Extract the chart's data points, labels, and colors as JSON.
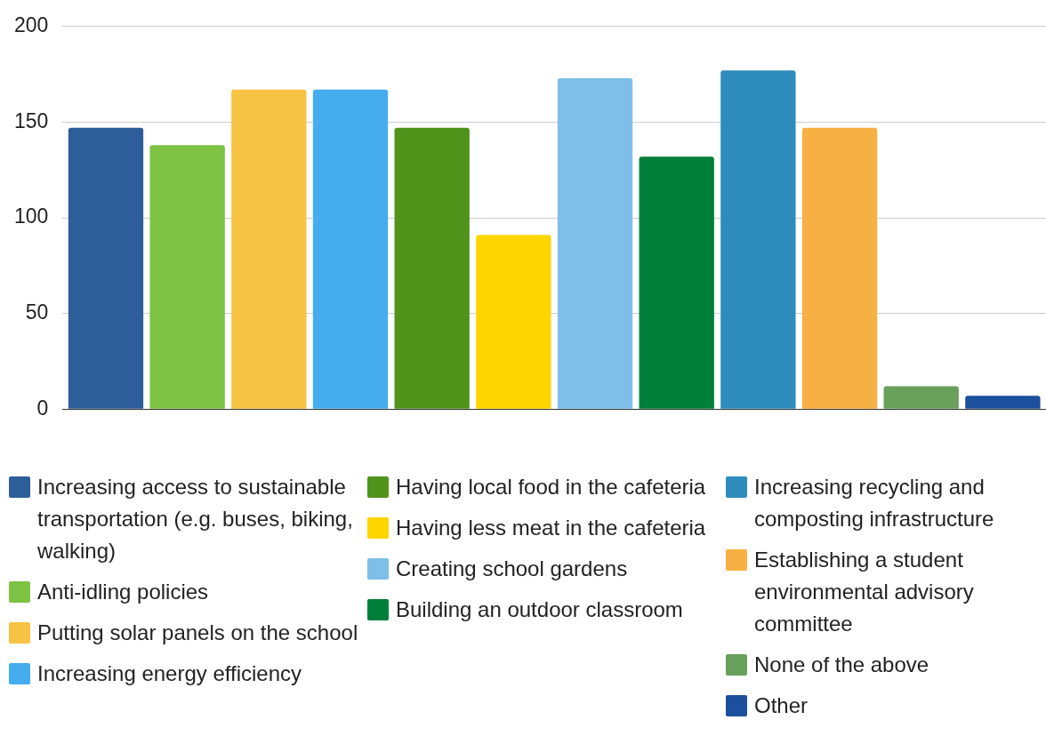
{
  "chart_data": {
    "type": "bar",
    "categories": [
      null
    ],
    "series": [
      {
        "name": "Increasing access to sustainable transportation (e.g. buses, biking, walking)",
        "color": "#2e5e99",
        "values": [
          147
        ]
      },
      {
        "name": "Anti-idling policies",
        "color": "#7dc242",
        "values": [
          138
        ]
      },
      {
        "name": "Putting solar panels on the school",
        "color": "#f6c344",
        "values": [
          167
        ]
      },
      {
        "name": "Increasing energy efficiency",
        "color": "#45aded",
        "values": [
          167
        ]
      },
      {
        "name": "Having local food in the cafeteria",
        "color": "#4f931b",
        "values": [
          147
        ]
      },
      {
        "name": "Having less meat in the cafeteria",
        "color": "#ffd600",
        "values": [
          91
        ]
      },
      {
        "name": "Creating school gardens",
        "color": "#7dbfe9",
        "values": [
          173
        ]
      },
      {
        "name": "Building an outdoor classroom",
        "color": "#007f3a",
        "values": [
          132
        ]
      },
      {
        "name": "Increasing recycling and composting infrastructure",
        "color": "#2e8cbc",
        "values": [
          177
        ]
      },
      {
        "name": "Establishing a student environmental advisory committee",
        "color": "#f6b043",
        "values": [
          147
        ]
      },
      {
        "name": "None of the above",
        "color": "#68a05c",
        "values": [
          12
        ]
      },
      {
        "name": "Other",
        "color": "#1c4f9c",
        "values": [
          7
        ]
      }
    ],
    "ylim": [
      0,
      200
    ],
    "yticks": [
      0,
      50,
      100,
      150,
      200
    ],
    "grid": "y",
    "legend": "bottom"
  }
}
